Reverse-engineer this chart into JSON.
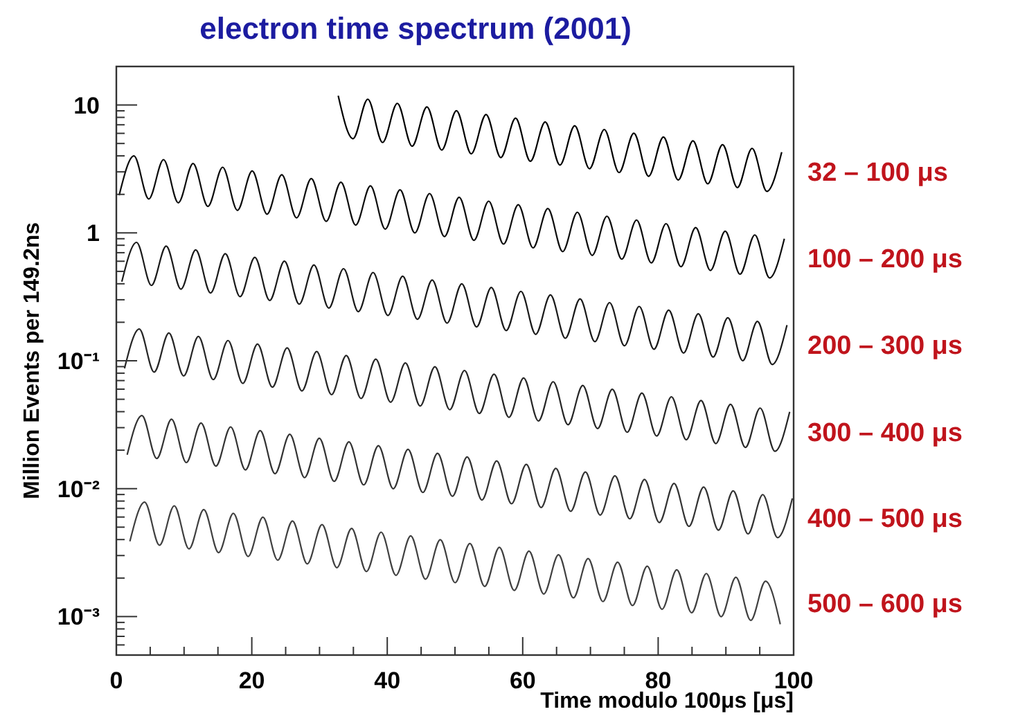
{
  "chart_data": {
    "type": "line",
    "title": "electron time spectrum (2001)",
    "xlabel": "Time modulo 100μs [μs]",
    "ylabel": "Million Events per 149.2ns",
    "log": "y",
    "grid": false,
    "marker": "none",
    "xlim": [
      0,
      100
    ],
    "ylim": [
      0.0005,
      20
    ],
    "xticks": [
      0,
      {
        "value": 5,
        "label": null
      },
      {
        "value": 10,
        "label": null
      },
      {
        "value": 15,
        "label": null
      },
      20,
      {
        "value": 25,
        "label": null
      },
      {
        "value": 30,
        "label": null
      },
      {
        "value": 35,
        "label": null
      },
      40,
      {
        "value": 45,
        "label": null
      },
      {
        "value": 50,
        "label": null
      },
      {
        "value": 55,
        "label": null
      },
      60,
      {
        "value": 65,
        "label": null
      },
      {
        "value": 70,
        "label": null
      },
      {
        "value": 75,
        "label": null
      },
      80,
      {
        "value": 85,
        "label": null
      },
      {
        "value": 90,
        "label": null
      },
      {
        "value": 95,
        "label": null
      },
      100
    ],
    "yticks": [
      {
        "value": 0.0006,
        "label": null
      },
      {
        "value": 0.0007,
        "label": null
      },
      {
        "value": 0.0008,
        "label": null
      },
      {
        "value": 0.0009,
        "label": null
      },
      {
        "value": 0.001,
        "label": "10⁻³"
      },
      {
        "value": 0.002,
        "label": null
      },
      {
        "value": 0.003,
        "label": null
      },
      {
        "value": 0.004,
        "label": null
      },
      {
        "value": 0.005,
        "label": null
      },
      {
        "value": 0.006,
        "label": null
      },
      {
        "value": 0.007,
        "label": null
      },
      {
        "value": 0.008,
        "label": null
      },
      {
        "value": 0.009,
        "label": null
      },
      {
        "value": 0.01,
        "label": "10⁻²"
      },
      {
        "value": 0.02,
        "label": null
      },
      {
        "value": 0.03,
        "label": null
      },
      {
        "value": 0.04,
        "label": null
      },
      {
        "value": 0.05,
        "label": null
      },
      {
        "value": 0.06,
        "label": null
      },
      {
        "value": 0.07,
        "label": null
      },
      {
        "value": 0.08,
        "label": null
      },
      {
        "value": 0.09,
        "label": null
      },
      {
        "value": 0.1,
        "label": "10⁻¹"
      },
      {
        "value": 0.2,
        "label": null
      },
      {
        "value": 0.3,
        "label": null
      },
      {
        "value": 0.4,
        "label": null
      },
      {
        "value": 0.5,
        "label": null
      },
      {
        "value": 0.6,
        "label": null
      },
      {
        "value": 0.7,
        "label": null
      },
      {
        "value": 0.8,
        "label": null
      },
      {
        "value": 0.9,
        "label": null
      },
      1,
      {
        "value": 2,
        "label": null
      },
      {
        "value": 3,
        "label": null
      },
      {
        "value": 4,
        "label": null
      },
      {
        "value": 5,
        "label": null
      },
      {
        "value": 6,
        "label": null
      },
      {
        "value": 7,
        "label": null
      },
      {
        "value": 8,
        "label": null
      },
      {
        "value": 9,
        "label": null
      },
      10
    ],
    "series": [
      {
        "name": "32 – 100  μs",
        "color": "#000000",
        "x": [
          32.76,
          34.94,
          37.13,
          39.31,
          41.49,
          43.67,
          45.86,
          48.04,
          50.22,
          52.4,
          54.59,
          56.77,
          58.95,
          61.13,
          63.32,
          65.5,
          67.68,
          69.86,
          72.05,
          74.23,
          76.41,
          78.59,
          80.78,
          82.96,
          85.14,
          87.32,
          89.51,
          91.69,
          93.87,
          96.05,
          98.24
        ],
        "values": [
          11.8,
          5.45,
          11.1,
          5.09,
          10.3,
          4.76,
          9.65,
          4.44,
          9.02,
          4.15,
          8.43,
          3.88,
          7.88,
          3.63,
          7.36,
          3.39,
          6.88,
          3.17,
          6.43,
          2.96,
          6.01,
          2.77,
          5.62,
          2.59,
          5.25,
          2.42,
          4.9,
          2.26,
          4.58,
          2.11,
          4.28
        ]
      },
      {
        "name": "100 – 200  μs",
        "color": "#0d0d0d",
        "x": [
          0.42,
          2.6,
          4.79,
          6.97,
          9.15,
          11.33,
          13.52,
          15.7,
          17.88,
          20.06,
          22.25,
          24.43,
          26.61,
          28.79,
          30.98,
          33.16,
          35.34,
          37.52,
          39.71,
          41.89,
          44.07,
          46.25,
          48.44,
          50.62,
          52.8,
          54.98,
          57.17,
          59.35,
          61.53,
          63.71,
          65.9,
          68.08,
          70.26,
          72.44,
          74.63,
          76.81,
          78.99,
          81.17,
          83.36,
          85.54,
          87.72,
          89.9,
          92.09,
          94.27,
          96.45,
          98.63
        ],
        "values": [
          1.97,
          4.0,
          1.84,
          3.74,
          1.72,
          3.49,
          1.61,
          3.26,
          1.5,
          3.05,
          1.4,
          2.85,
          1.31,
          2.66,
          1.23,
          2.49,
          1.15,
          2.33,
          1.07,
          2.17,
          1.0,
          2.03,
          0.935,
          1.9,
          0.874,
          1.77,
          0.817,
          1.66,
          0.763,
          1.55,
          0.714,
          1.45,
          0.667,
          1.35,
          0.623,
          1.26,
          0.582,
          1.18,
          0.544,
          1.1,
          0.508,
          1.03,
          0.475,
          0.964,
          0.444,
          0.901
        ]
      },
      {
        "name": "200 – 300  μs",
        "color": "#1a1a1a",
        "x": [
          0.81,
          2.99,
          5.18,
          7.36,
          9.54,
          11.72,
          13.91,
          16.09,
          18.27,
          20.45,
          22.64,
          24.82,
          27.0,
          29.18,
          31.37,
          33.55,
          35.73,
          37.91,
          40.1,
          42.28,
          44.46,
          46.64,
          48.83,
          51.01,
          53.19,
          55.37,
          57.56,
          59.74,
          61.92,
          64.1,
          66.29,
          68.47,
          70.65,
          72.83,
          75.02,
          77.2,
          79.38,
          81.56,
          83.75,
          85.93,
          88.11,
          90.29,
          92.48,
          94.66,
          96.84,
          99.02
        ],
        "values": [
          0.415,
          0.843,
          0.388,
          0.788,
          0.363,
          0.736,
          0.339,
          0.688,
          0.317,
          0.643,
          0.296,
          0.601,
          0.277,
          0.561,
          0.258,
          0.525,
          0.242,
          0.49,
          0.226,
          0.458,
          0.211,
          0.428,
          0.197,
          0.4,
          0.184,
          0.374,
          0.172,
          0.349,
          0.161,
          0.327,
          0.15,
          0.305,
          0.141,
          0.285,
          0.131,
          0.266,
          0.123,
          0.249,
          0.115,
          0.233,
          0.107,
          0.217,
          0.1,
          0.203,
          0.0936,
          0.19
        ]
      },
      {
        "name": "300 – 400  μs",
        "color": "#262626",
        "x": [
          1.21,
          3.39,
          5.58,
          7.76,
          9.94,
          12.12,
          14.31,
          16.49,
          18.67,
          20.85,
          23.04,
          25.22,
          27.4,
          29.58,
          31.77,
          33.95,
          36.13,
          38.31,
          40.5,
          42.68,
          44.86,
          47.04,
          49.23,
          51.41,
          53.59,
          55.77,
          57.96,
          60.14,
          62.32,
          64.5,
          66.69,
          68.87,
          71.05,
          73.23,
          75.42,
          77.6,
          79.78,
          81.96,
          84.15,
          86.33,
          88.51,
          90.69,
          92.88,
          95.06,
          97.24,
          99.42
        ],
        "values": [
          0.0872,
          0.177,
          0.0815,
          0.165,
          0.0761,
          0.155,
          0.0712,
          0.144,
          0.0665,
          0.135,
          0.0621,
          0.126,
          0.0581,
          0.118,
          0.0543,
          0.11,
          0.0507,
          0.103,
          0.0474,
          0.0962,
          0.0443,
          0.0899,
          0.0414,
          0.084,
          0.0387,
          0.0785,
          0.0361,
          0.0734,
          0.0338,
          0.0686,
          0.0316,
          0.0641,
          0.0295,
          0.0599,
          0.0276,
          0.0559,
          0.0258,
          0.0523,
          0.0241,
          0.0489,
          0.0225,
          0.0457,
          0.021,
          0.0427,
          0.0196,
          0.0399
        ]
      },
      {
        "name": "400 – 500  μs",
        "color": "#333333",
        "x": [
          1.6,
          3.78,
          5.97,
          8.15,
          10.33,
          12.51,
          14.7,
          16.88,
          19.06,
          21.24,
          23.43,
          25.61,
          27.79,
          29.97,
          32.16,
          34.34,
          36.52,
          38.7,
          40.89,
          43.07,
          45.25,
          47.43,
          49.62,
          51.8,
          53.98,
          56.16,
          58.35,
          60.53,
          62.71,
          64.89,
          67.08,
          69.26,
          71.44,
          73.62,
          75.81,
          77.99,
          80.17,
          82.35,
          84.54,
          86.72,
          88.9,
          91.08,
          93.27,
          95.45,
          97.63,
          99.81
        ],
        "values": [
          0.0184,
          0.0373,
          0.0172,
          0.0349,
          0.016,
          0.0326,
          0.015,
          0.0304,
          0.014,
          0.0284,
          0.0131,
          0.0266,
          0.0122,
          0.0248,
          0.0114,
          0.0232,
          0.0107,
          0.0217,
          0.00999,
          0.0203,
          0.00933,
          0.0189,
          0.00872,
          0.0177,
          0.00815,
          0.0165,
          0.00762,
          0.0155,
          0.00712,
          0.0144,
          0.00665,
          0.0135,
          0.00622,
          0.0126,
          0.00581,
          0.0118,
          0.00543,
          0.011,
          0.00507,
          0.0103,
          0.00474,
          0.00962,
          0.00443,
          0.00899,
          0.00414,
          0.0084
        ]
      },
      {
        "name": "500 – 600  μs",
        "color": "#404040",
        "x": [
          2.0,
          4.18,
          6.37,
          8.55,
          10.73,
          12.91,
          15.1,
          17.28,
          19.46,
          21.64,
          23.83,
          26.01,
          28.19,
          30.37,
          32.56,
          34.74,
          36.92,
          39.1,
          41.29,
          43.47,
          45.65,
          47.83,
          50.02,
          52.2,
          54.38,
          56.56,
          58.75,
          60.93,
          63.11,
          65.29,
          67.48,
          69.66,
          71.84,
          74.02,
          76.21,
          78.39,
          80.57,
          82.75,
          84.94,
          87.12,
          89.3,
          91.48,
          93.67,
          95.85,
          98.03
        ],
        "values": [
          0.00387,
          0.00785,
          0.00361,
          0.00734,
          0.00338,
          0.00686,
          0.00316,
          0.00641,
          0.00295,
          0.00599,
          0.00276,
          0.00559,
          0.00258,
          0.00523,
          0.00241,
          0.00489,
          0.00225,
          0.00457,
          0.0021,
          0.00427,
          0.00196,
          0.00399,
          0.00184,
          0.00373,
          0.00172,
          0.00348,
          0.0016,
          0.00325,
          0.0015,
          0.00304,
          0.0014,
          0.00284,
          0.00131,
          0.00266,
          0.00122,
          0.00248,
          0.00114,
          0.00232,
          0.00107,
          0.00217,
          0.000998,
          0.00203,
          0.000933,
          0.00189,
          0.000871
        ]
      }
    ]
  }
}
